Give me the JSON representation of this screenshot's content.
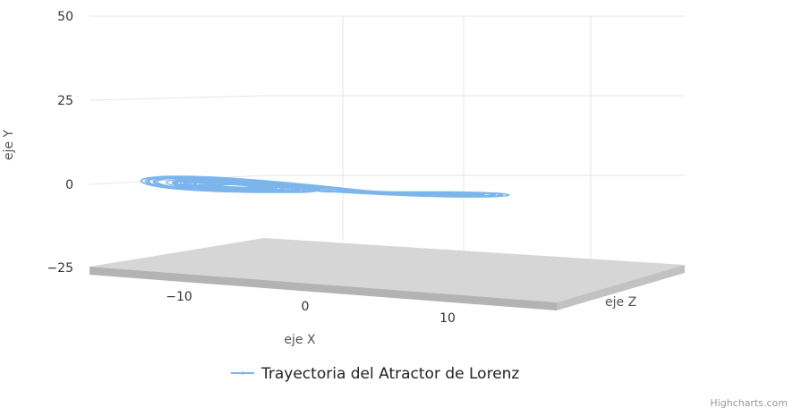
{
  "chart_data": {
    "type": "line",
    "projection": "3d",
    "title": "",
    "xlabel": "eje X",
    "ylabel": "eje Y",
    "zlabel": "eje Z",
    "xlim": [
      -17,
      17
    ],
    "ylim": [
      -25,
      50
    ],
    "x_ticks": [
      "−10",
      "0",
      "10"
    ],
    "y_ticks": [
      "50",
      "25",
      "0",
      "−25"
    ],
    "legend_placement": "bottom-center",
    "grid": true,
    "series": [
      {
        "name": "Trayectoria del Atractor de Lorenz",
        "color": "#7cb5ec",
        "trajectory": "lorenz-attractor",
        "parameters": {
          "sigma": 10,
          "rho": 28,
          "beta": 2.6667
        }
      }
    ]
  },
  "credits": "Highcharts.com"
}
